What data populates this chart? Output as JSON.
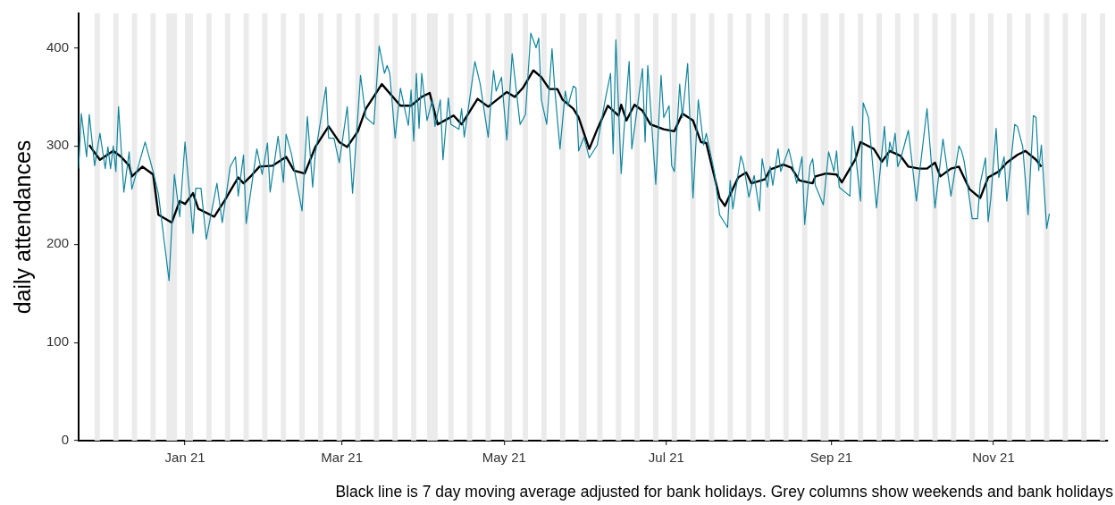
{
  "chart_data": {
    "type": "line",
    "ylabel": "daily attendances",
    "annotations": [
      "Black line is 7 day moving average adjusted for bank holidays. Grey columns show weekends and bank holidays"
    ],
    "xlim": [
      "2020-11-22",
      "2021-12-14"
    ],
    "xticks": [
      {
        "value": "2021-01-01",
        "label": "Jan 21"
      },
      {
        "value": "2021-03-01",
        "label": "Mar 21"
      },
      {
        "value": "2021-05-01",
        "label": "May 21"
      },
      {
        "value": "2021-07-01",
        "label": "Jul 21"
      },
      {
        "value": "2021-09-01",
        "label": "Sep 21"
      },
      {
        "value": "2021-11-01",
        "label": "Nov 21"
      }
    ],
    "ylim": [
      0,
      435
    ],
    "yticks": [
      0,
      100,
      200,
      300,
      400
    ],
    "grid": false,
    "legend": false,
    "marker": "none",
    "line_style": "solid",
    "series": [
      {
        "color": "#11859d",
        "x": [
          "2020-11-22",
          "2020-11-23",
          "2020-11-25",
          "2020-11-26",
          "2020-11-28",
          "2020-11-30",
          "2020-12-02",
          "2020-12-03",
          "2020-12-04",
          "2020-12-05",
          "2020-12-06",
          "2020-12-07",
          "2020-12-09",
          "2020-12-11",
          "2020-12-12",
          "2020-12-17",
          "2020-12-20",
          "2020-12-22",
          "2020-12-26",
          "2020-12-28",
          "2020-12-30",
          "2021-01-01",
          "2021-01-04",
          "2021-01-05",
          "2021-01-07",
          "2021-01-09",
          "2021-01-13",
          "2021-01-15",
          "2021-01-18",
          "2021-01-20",
          "2021-01-21",
          "2021-01-23",
          "2021-01-24",
          "2021-01-28",
          "2021-01-30",
          "2021-02-01",
          "2021-02-02",
          "2021-02-05",
          "2021-02-07",
          "2021-02-08",
          "2021-02-10",
          "2021-02-14",
          "2021-02-16",
          "2021-02-18",
          "2021-02-19",
          "2021-02-23",
          "2021-02-24",
          "2021-02-26",
          "2021-02-28",
          "2021-03-03",
          "2021-03-05",
          "2021-03-08",
          "2021-03-10",
          "2021-03-13",
          "2021-03-15",
          "2021-03-17",
          "2021-03-18",
          "2021-03-19",
          "2021-03-21",
          "2021-03-23",
          "2021-03-25",
          "2021-03-26",
          "2021-03-27",
          "2021-03-28",
          "2021-03-29",
          "2021-03-30",
          "2021-03-31",
          "2021-04-02",
          "2021-04-04",
          "2021-04-05",
          "2021-04-07",
          "2021-04-08",
          "2021-04-10",
          "2021-04-11",
          "2021-04-14",
          "2021-04-15",
          "2021-04-16",
          "2021-04-20",
          "2021-04-22",
          "2021-04-25",
          "2021-04-27",
          "2021-04-28",
          "2021-04-30",
          "2021-05-02",
          "2021-05-04",
          "2021-05-07",
          "2021-05-09",
          "2021-05-11",
          "2021-05-13",
          "2021-05-14",
          "2021-05-15",
          "2021-05-17",
          "2021-05-19",
          "2021-05-20",
          "2021-05-22",
          "2021-05-24",
          "2021-05-25",
          "2021-05-27",
          "2021-05-28",
          "2021-05-29",
          "2021-05-31",
          "2021-06-02",
          "2021-06-05",
          "2021-06-08",
          "2021-06-10",
          "2021-06-11",
          "2021-06-12",
          "2021-06-14",
          "2021-06-15",
          "2021-06-17",
          "2021-06-18",
          "2021-06-22",
          "2021-06-23",
          "2021-06-24",
          "2021-06-27",
          "2021-06-29",
          "2021-06-30",
          "2021-07-02",
          "2021-07-03",
          "2021-07-04",
          "2021-07-06",
          "2021-07-07",
          "2021-07-09",
          "2021-07-11",
          "2021-07-13",
          "2021-07-15",
          "2021-07-16",
          "2021-07-19",
          "2021-07-21",
          "2021-07-24",
          "2021-07-25",
          "2021-07-26",
          "2021-07-29",
          "2021-07-30",
          "2021-08-01",
          "2021-08-03",
          "2021-08-05",
          "2021-08-06",
          "2021-08-08",
          "2021-08-09",
          "2021-08-10",
          "2021-08-12",
          "2021-08-13",
          "2021-08-16",
          "2021-08-19",
          "2021-08-21",
          "2021-08-22",
          "2021-08-24",
          "2021-08-25",
          "2021-08-26",
          "2021-08-29",
          "2021-08-31",
          "2021-09-02",
          "2021-09-03",
          "2021-09-04",
          "2021-09-08",
          "2021-09-09",
          "2021-09-12",
          "2021-09-13",
          "2021-09-15",
          "2021-09-18",
          "2021-09-21",
          "2021-09-22",
          "2021-09-23",
          "2021-09-24",
          "2021-09-25",
          "2021-09-26",
          "2021-09-27",
          "2021-09-30",
          "2021-10-03",
          "2021-10-04",
          "2021-10-07",
          "2021-10-10",
          "2021-10-13",
          "2021-10-16",
          "2021-10-17",
          "2021-10-19",
          "2021-10-20",
          "2021-10-21",
          "2021-10-24",
          "2021-10-26",
          "2021-10-27",
          "2021-10-29",
          "2021-10-30",
          "2021-10-31",
          "2021-11-02",
          "2021-11-03",
          "2021-11-05",
          "2021-11-06",
          "2021-11-09",
          "2021-11-10",
          "2021-11-12",
          "2021-11-14",
          "2021-11-16",
          "2021-11-17",
          "2021-11-18",
          "2021-11-19",
          "2021-11-21",
          "2021-11-22"
        ],
        "values": [
          277,
          333,
          289,
          332,
          280,
          313,
          277,
          299,
          277,
          300,
          274,
          340,
          253,
          294,
          256,
          304,
          274,
          251,
          163,
          271,
          228,
          304,
          211,
          257,
          257,
          205,
          262,
          222,
          279,
          289,
          249,
          291,
          221,
          297,
          271,
          303,
          253,
          310,
          263,
          312,
          292,
          234,
          330,
          258,
          292,
          360,
          308,
          308,
          283,
          340,
          252,
          372,
          329,
          322,
          402,
          374,
          382,
          374,
          308,
          359,
          333,
          321,
          357,
          305,
          374,
          318,
          374,
          326,
          347,
          320,
          347,
          286,
          349,
          322,
          317,
          338,
          309,
          386,
          363,
          309,
          377,
          356,
          370,
          306,
          394,
          322,
          332,
          415,
          400,
          410,
          347,
          322,
          399,
          359,
          297,
          356,
          341,
          361,
          359,
          295,
          309,
          288,
          301,
          347,
          374,
          292,
          408,
          272,
          313,
          386,
          297,
          379,
          304,
          382,
          261,
          372,
          329,
          341,
          280,
          274,
          363,
          329,
          384,
          247,
          347,
          301,
          313,
          274,
          230,
          217,
          265,
          236,
          290,
          281,
          248,
          270,
          234,
          287,
          258,
          279,
          260,
          297,
          274,
          297,
          262,
          289,
          220,
          280,
          287,
          260,
          240,
          294,
          274,
          295,
          258,
          249,
          320,
          244,
          344,
          329,
          237,
          320,
          279,
          304,
          294,
          313,
          279,
          286,
          316,
          244,
          268,
          338,
          237,
          307,
          249,
          266,
          300,
          295,
          284,
          226,
          226,
          262,
          288,
          223,
          247,
          318,
          268,
          289,
          244,
          322,
          320,
          299,
          230,
          331,
          329,
          275,
          301,
          216,
          231
        ]
      },
      {
        "color": "#000000",
        "x": [
          "2020-11-26",
          "2020-11-27",
          "2020-11-30",
          "2020-12-05",
          "2020-12-08",
          "2020-12-11",
          "2020-12-12",
          "2020-12-16",
          "2020-12-20",
          "2020-12-22",
          "2020-12-27",
          "2020-12-30",
          "2021-01-01",
          "2021-01-04",
          "2021-01-06",
          "2021-01-12",
          "2021-01-16",
          "2021-01-21",
          "2021-01-23",
          "2021-01-26",
          "2021-01-29",
          "2021-02-03",
          "2021-02-08",
          "2021-02-11",
          "2021-02-15",
          "2021-02-19",
          "2021-02-24",
          "2021-02-28",
          "2021-03-03",
          "2021-03-07",
          "2021-03-10",
          "2021-03-16",
          "2021-03-23",
          "2021-03-27",
          "2021-03-31",
          "2021-04-03",
          "2021-04-06",
          "2021-04-12",
          "2021-04-15",
          "2021-04-21",
          "2021-04-25",
          "2021-05-02",
          "2021-05-05",
          "2021-05-08",
          "2021-05-12",
          "2021-05-15",
          "2021-05-18",
          "2021-05-21",
          "2021-05-23",
          "2021-05-27",
          "2021-05-29",
          "2021-06-02",
          "2021-06-05",
          "2021-06-09",
          "2021-06-13",
          "2021-06-14",
          "2021-06-16",
          "2021-06-19",
          "2021-06-22",
          "2021-06-25",
          "2021-06-30",
          "2021-07-04",
          "2021-07-07",
          "2021-07-11",
          "2021-07-14",
          "2021-07-16",
          "2021-07-21",
          "2021-07-23",
          "2021-07-28",
          "2021-07-31",
          "2021-08-02",
          "2021-08-07",
          "2021-08-09",
          "2021-08-14",
          "2021-08-17",
          "2021-08-20",
          "2021-08-25",
          "2021-08-26",
          "2021-08-30",
          "2021-09-03",
          "2021-09-05",
          "2021-09-08",
          "2021-09-10",
          "2021-09-12",
          "2021-09-17",
          "2021-09-20",
          "2021-09-23",
          "2021-09-27",
          "2021-09-30",
          "2021-10-04",
          "2021-10-07",
          "2021-10-10",
          "2021-10-12",
          "2021-10-16",
          "2021-10-19",
          "2021-10-23",
          "2021-10-27",
          "2021-10-30",
          "2021-11-03",
          "2021-11-06",
          "2021-11-10",
          "2021-11-13",
          "2021-11-17",
          "2021-11-19"
        ],
        "values": [
          301,
          297,
          286,
          295,
          289,
          280,
          269,
          279,
          271,
          230,
          222,
          244,
          241,
          252,
          236,
          228,
          245,
          268,
          262,
          270,
          279,
          280,
          289,
          275,
          272,
          299,
          320,
          304,
          299,
          315,
          338,
          363,
          341,
          341,
          350,
          354,
          322,
          331,
          322,
          348,
          340,
          355,
          350,
          359,
          377,
          370,
          358,
          358,
          347,
          338,
          329,
          297,
          317,
          341,
          331,
          342,
          326,
          342,
          336,
          322,
          317,
          315,
          333,
          326,
          304,
          303,
          247,
          239,
          268,
          273,
          262,
          266,
          276,
          281,
          278,
          265,
          262,
          269,
          272,
          271,
          263,
          277,
          286,
          304,
          297,
          284,
          295,
          290,
          279,
          277,
          277,
          283,
          269,
          277,
          279,
          256,
          247,
          268,
          274,
          283,
          291,
          295,
          286,
          279
        ]
      }
    ],
    "bands": [
      {
        "axis": "x",
        "from": "2020-11-28",
        "to": "2020-11-30"
      },
      {
        "axis": "x",
        "from": "2020-12-05",
        "to": "2020-12-07"
      },
      {
        "axis": "x",
        "from": "2020-12-12",
        "to": "2020-12-14"
      },
      {
        "axis": "x",
        "from": "2020-12-19",
        "to": "2020-12-21"
      },
      {
        "axis": "x",
        "from": "2020-12-25",
        "to": "2020-12-29"
      },
      {
        "axis": "x",
        "from": "2021-01-01",
        "to": "2021-01-04"
      },
      {
        "axis": "x",
        "from": "2021-01-09",
        "to": "2021-01-11"
      },
      {
        "axis": "x",
        "from": "2021-01-16",
        "to": "2021-01-18"
      },
      {
        "axis": "x",
        "from": "2021-01-23",
        "to": "2021-01-25"
      },
      {
        "axis": "x",
        "from": "2021-01-30",
        "to": "2021-02-01"
      },
      {
        "axis": "x",
        "from": "2021-02-06",
        "to": "2021-02-08"
      },
      {
        "axis": "x",
        "from": "2021-02-13",
        "to": "2021-02-15"
      },
      {
        "axis": "x",
        "from": "2021-02-20",
        "to": "2021-02-22"
      },
      {
        "axis": "x",
        "from": "2021-02-27",
        "to": "2021-03-01"
      },
      {
        "axis": "x",
        "from": "2021-03-06",
        "to": "2021-03-08"
      },
      {
        "axis": "x",
        "from": "2021-03-13",
        "to": "2021-03-15"
      },
      {
        "axis": "x",
        "from": "2021-03-20",
        "to": "2021-03-22"
      },
      {
        "axis": "x",
        "from": "2021-03-27",
        "to": "2021-03-29"
      },
      {
        "axis": "x",
        "from": "2021-04-02",
        "to": "2021-04-06"
      },
      {
        "axis": "x",
        "from": "2021-04-10",
        "to": "2021-04-12"
      },
      {
        "axis": "x",
        "from": "2021-04-17",
        "to": "2021-04-19"
      },
      {
        "axis": "x",
        "from": "2021-04-24",
        "to": "2021-04-26"
      },
      {
        "axis": "x",
        "from": "2021-05-01",
        "to": "2021-05-04"
      },
      {
        "axis": "x",
        "from": "2021-05-08",
        "to": "2021-05-10"
      },
      {
        "axis": "x",
        "from": "2021-05-15",
        "to": "2021-05-17"
      },
      {
        "axis": "x",
        "from": "2021-05-22",
        "to": "2021-05-24"
      },
      {
        "axis": "x",
        "from": "2021-05-29",
        "to": "2021-06-01"
      },
      {
        "axis": "x",
        "from": "2021-06-05",
        "to": "2021-06-07"
      },
      {
        "axis": "x",
        "from": "2021-06-12",
        "to": "2021-06-14"
      },
      {
        "axis": "x",
        "from": "2021-06-19",
        "to": "2021-06-21"
      },
      {
        "axis": "x",
        "from": "2021-06-26",
        "to": "2021-06-28"
      },
      {
        "axis": "x",
        "from": "2021-07-03",
        "to": "2021-07-05"
      },
      {
        "axis": "x",
        "from": "2021-07-10",
        "to": "2021-07-12"
      },
      {
        "axis": "x",
        "from": "2021-07-17",
        "to": "2021-07-19"
      },
      {
        "axis": "x",
        "from": "2021-07-24",
        "to": "2021-07-26"
      },
      {
        "axis": "x",
        "from": "2021-07-31",
        "to": "2021-08-02"
      },
      {
        "axis": "x",
        "from": "2021-08-07",
        "to": "2021-08-09"
      },
      {
        "axis": "x",
        "from": "2021-08-14",
        "to": "2021-08-16"
      },
      {
        "axis": "x",
        "from": "2021-08-21",
        "to": "2021-08-23"
      },
      {
        "axis": "x",
        "from": "2021-08-28",
        "to": "2021-08-31"
      },
      {
        "axis": "x",
        "from": "2021-09-04",
        "to": "2021-09-06"
      },
      {
        "axis": "x",
        "from": "2021-09-11",
        "to": "2021-09-13"
      },
      {
        "axis": "x",
        "from": "2021-09-18",
        "to": "2021-09-20"
      },
      {
        "axis": "x",
        "from": "2021-09-25",
        "to": "2021-09-27"
      },
      {
        "axis": "x",
        "from": "2021-10-02",
        "to": "2021-10-04"
      },
      {
        "axis": "x",
        "from": "2021-10-09",
        "to": "2021-10-11"
      },
      {
        "axis": "x",
        "from": "2021-10-16",
        "to": "2021-10-18"
      },
      {
        "axis": "x",
        "from": "2021-10-23",
        "to": "2021-10-25"
      },
      {
        "axis": "x",
        "from": "2021-10-30",
        "to": "2021-11-01"
      },
      {
        "axis": "x",
        "from": "2021-11-06",
        "to": "2021-11-08"
      },
      {
        "axis": "x",
        "from": "2021-11-13",
        "to": "2021-11-15"
      },
      {
        "axis": "x",
        "from": "2021-11-20",
        "to": "2021-11-22"
      },
      {
        "axis": "x",
        "from": "2021-11-27",
        "to": "2021-11-29"
      },
      {
        "axis": "x",
        "from": "2021-12-04",
        "to": "2021-12-06"
      },
      {
        "axis": "x",
        "from": "2021-12-11",
        "to": "2021-12-13"
      }
    ]
  }
}
